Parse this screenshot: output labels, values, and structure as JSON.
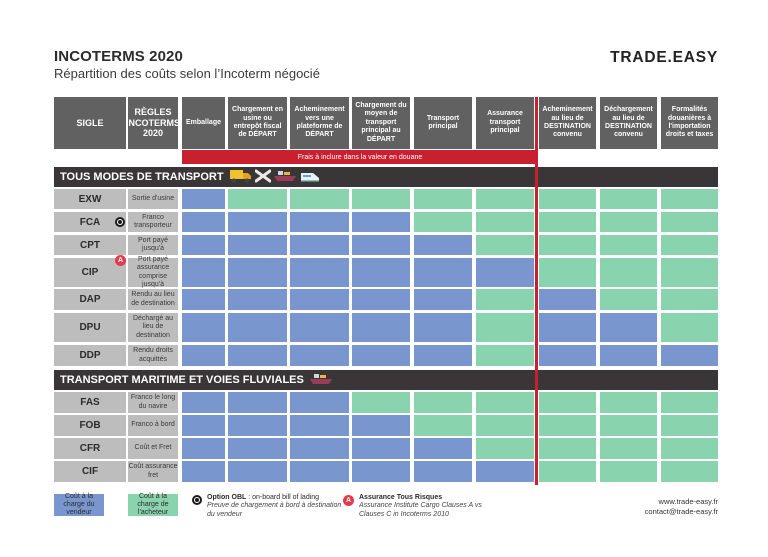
{
  "header": {
    "title": "INCOTERMS 2020",
    "subtitle": "Répartition des coûts selon l’Incoterm négocié",
    "brand": "TRADE.EASY"
  },
  "columns": [
    {
      "key": "sigle",
      "label": "SIGLE"
    },
    {
      "key": "regles",
      "label": "RÈGLES INCOTERMS 2020"
    },
    {
      "key": "emballage",
      "label": "Emballage"
    },
    {
      "key": "chargement_depart",
      "label": "Chargement en usine ou entrepôt fiscal de DÉPART"
    },
    {
      "key": "acheminement_depart",
      "label": "Acheminement vers une plateforme de DÉPART"
    },
    {
      "key": "chargement_moyen",
      "label": "Chargement du moyen de transport principal au DÉPART"
    },
    {
      "key": "transport_principal",
      "label": "Transport principal"
    },
    {
      "key": "assurance",
      "label": "Assurance transport principal"
    },
    {
      "key": "acheminement_dest",
      "label": "Acheminement au lieu de DESTINATION convenu"
    },
    {
      "key": "dechargement_dest",
      "label": "Déchargement au lieu de DESTINATION convenu"
    },
    {
      "key": "formalites",
      "label": "Formalités douanières à l'importation droits et taxes"
    }
  ],
  "customs_bar": "Frais à inclure dans la valeur en douane",
  "sections": [
    {
      "title": "TOUS MODES DE TRANSPORT",
      "icons": [
        "truck-icon",
        "plane-icon",
        "ship-icon",
        "train-icon"
      ],
      "rows": [
        {
          "sigle": "EXW",
          "rule": "Sortie d'usine",
          "cells": [
            "S",
            "B",
            "B",
            "B",
            "B",
            "B",
            "B",
            "B",
            "B"
          ]
        },
        {
          "sigle": "FCA",
          "rule": "Franco transporteur",
          "badge": "O",
          "cells": [
            "S",
            "S",
            "S",
            "S",
            "B",
            "B",
            "B",
            "B",
            "B"
          ]
        },
        {
          "sigle": "CPT",
          "rule": "Port payé jusqu'à",
          "cells": [
            "S",
            "S",
            "S",
            "S",
            "S",
            "B",
            "B",
            "B",
            "B"
          ]
        },
        {
          "sigle": "CIP",
          "rule": "Port payé assurance comprise jusqu'à",
          "badge": "A",
          "cells": [
            "S",
            "S",
            "S",
            "S",
            "S",
            "S",
            "B",
            "B",
            "B"
          ]
        },
        {
          "sigle": "DAP",
          "rule": "Rendu au lieu de destination",
          "cells": [
            "S",
            "S",
            "S",
            "S",
            "S",
            "B",
            "S",
            "B",
            "B"
          ]
        },
        {
          "sigle": "DPU",
          "rule": "Déchargé au lieu de destination",
          "cells": [
            "S",
            "S",
            "S",
            "S",
            "S",
            "B",
            "S",
            "S",
            "B"
          ]
        },
        {
          "sigle": "DDP",
          "rule": "Rendu droits acquittés",
          "cells": [
            "S",
            "S",
            "S",
            "S",
            "S",
            "B",
            "S",
            "S",
            "S"
          ]
        }
      ]
    },
    {
      "title": "TRANSPORT MARITIME ET VOIES FLUVIALES",
      "icons": [
        "ship-icon"
      ],
      "rows": [
        {
          "sigle": "FAS",
          "rule": "Franco le long du navire",
          "cells": [
            "S",
            "S",
            "S",
            "B",
            "B",
            "B",
            "B",
            "B",
            "B"
          ]
        },
        {
          "sigle": "FOB",
          "rule": "Franco à bord",
          "cells": [
            "S",
            "S",
            "S",
            "S",
            "B",
            "B",
            "B",
            "B",
            "B"
          ]
        },
        {
          "sigle": "CFR",
          "rule": "Coût et Fret",
          "cells": [
            "S",
            "S",
            "S",
            "S",
            "S",
            "B",
            "B",
            "B",
            "B"
          ]
        },
        {
          "sigle": "CIF",
          "rule": "Coût assurance fret",
          "cells": [
            "S",
            "S",
            "S",
            "S",
            "S",
            "S",
            "B",
            "B",
            "B"
          ]
        }
      ]
    }
  ],
  "legend": {
    "seller": "Coût à la charge du vendeur",
    "buyer": "Coût à la charge de l'acheteur",
    "obl_title": "Option OBL",
    "obl_text": " : on-board bill of lading",
    "obl_desc": "Preuve de chargement à bord à destination du vendeur",
    "a_title": "Assurance Tous Risques",
    "a_desc": "Assurance Institute Cargo Clauses A vs Clauses C in Incoterms 2010"
  },
  "contact": {
    "website": "www.trade-easy.fr",
    "email": "contact@trade-easy.fr"
  },
  "colors": {
    "seller": "#7a96cf",
    "buyer": "#89d4ae",
    "header": "#616161",
    "section": "#3a3638",
    "rule_cell": "#bdbdbd",
    "accent_red": "#c8202f",
    "badge_a": "#e33b4c"
  }
}
